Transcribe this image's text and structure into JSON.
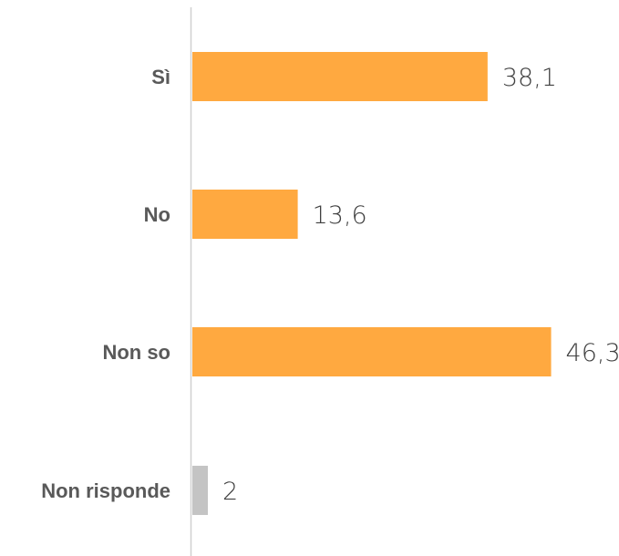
{
  "chart_data": {
    "type": "bar",
    "orientation": "horizontal",
    "categories": [
      "Sì",
      "No",
      "Non so",
      "Non risponde"
    ],
    "values": [
      38.1,
      13.6,
      46.3,
      2
    ],
    "value_labels": [
      "38,1",
      "13,6",
      "46,3",
      "2"
    ],
    "bar_colors": [
      "#FFA940",
      "#FFA940",
      "#FFA940",
      "#C4C4C4"
    ],
    "title": "",
    "xlabel": "",
    "ylabel": "",
    "xlim": [
      0,
      50
    ],
    "grid": false,
    "legend": "none"
  },
  "colors": {
    "accent": "#FFA940",
    "neutral": "#C4C4C4",
    "axis": "#D0D0D0",
    "category_text": "#595959",
    "value_text": "#404040"
  }
}
